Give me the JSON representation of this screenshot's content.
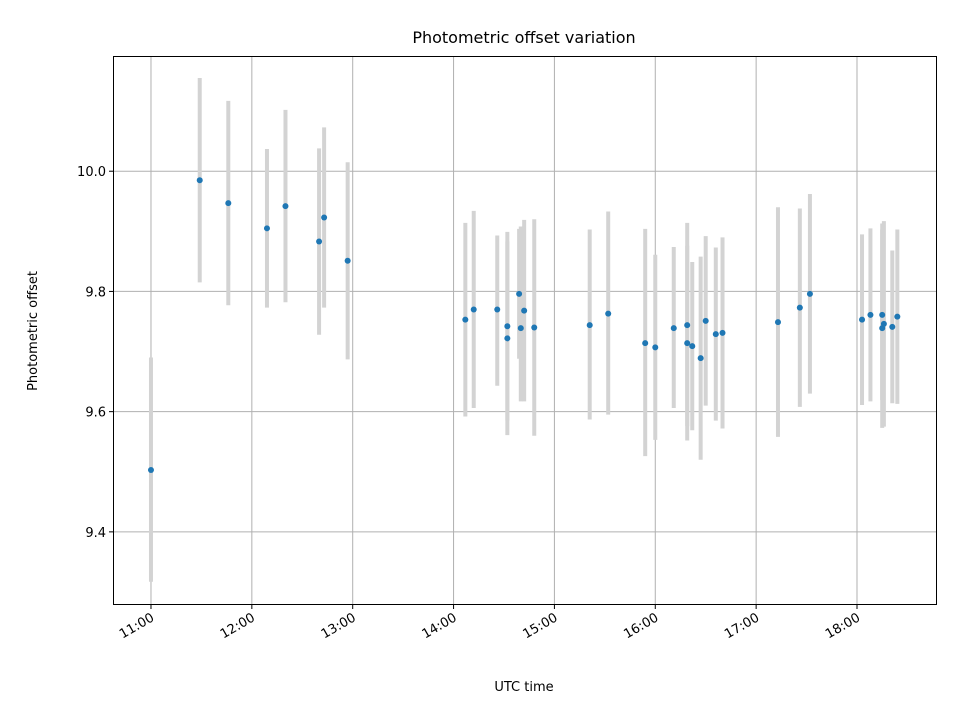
{
  "chart_data": {
    "type": "scatter",
    "title": "Photometric offset variation",
    "xlabel": "UTC time",
    "ylabel": "Photometric offset",
    "x_axis_type": "time",
    "xlim": [
      "10:38",
      "18:47"
    ],
    "ylim": [
      9.28,
      10.19
    ],
    "xticks": [
      "11:00",
      "12:00",
      "13:00",
      "14:00",
      "15:00",
      "16:00",
      "17:00",
      "18:00"
    ],
    "yticks": [
      9.4,
      9.6,
      9.8,
      10.0
    ],
    "ytick_labels": [
      "9.4",
      "9.6",
      "9.8",
      "10.0"
    ],
    "grid": true,
    "marker_color": "#1f77b4",
    "errorbar_color": "#d3d3d3",
    "series": [
      {
        "points": [
          {
            "t": "11:00",
            "y": 9.503,
            "ylo": 9.317,
            "yhi": 9.69
          },
          {
            "t": "11:29",
            "y": 9.985,
            "ylo": 9.815,
            "yhi": 10.155
          },
          {
            "t": "11:46",
            "y": 9.947,
            "ylo": 9.777,
            "yhi": 10.117
          },
          {
            "t": "12:09",
            "y": 9.905,
            "ylo": 9.773,
            "yhi": 10.037
          },
          {
            "t": "12:20",
            "y": 9.942,
            "ylo": 9.782,
            "yhi": 10.102
          },
          {
            "t": "12:40",
            "y": 9.883,
            "ylo": 9.728,
            "yhi": 10.038
          },
          {
            "t": "12:43",
            "y": 9.923,
            "ylo": 9.773,
            "yhi": 10.073
          },
          {
            "t": "12:57",
            "y": 9.851,
            "ylo": 9.687,
            "yhi": 10.015
          },
          {
            "t": "14:07",
            "y": 9.753,
            "ylo": 9.592,
            "yhi": 9.914
          },
          {
            "t": "14:12",
            "y": 9.77,
            "ylo": 9.606,
            "yhi": 9.934
          },
          {
            "t": "14:26",
            "y": 9.77,
            "ylo": 9.643,
            "yhi": 9.893
          },
          {
            "t": "14:32",
            "y": 9.742,
            "ylo": 9.585,
            "yhi": 9.899
          },
          {
            "t": "14:32",
            "y": 9.722,
            "ylo": 9.561,
            "yhi": 9.883
          },
          {
            "t": "14:39",
            "y": 9.796,
            "ylo": 9.688,
            "yhi": 9.904
          },
          {
            "t": "14:40",
            "y": 9.739,
            "ylo": 9.617,
            "yhi": 9.908
          },
          {
            "t": "14:42",
            "y": 9.768,
            "ylo": 9.617,
            "yhi": 9.919
          },
          {
            "t": "14:48",
            "y": 9.74,
            "ylo": 9.56,
            "yhi": 9.92
          },
          {
            "t": "15:21",
            "y": 9.744,
            "ylo": 9.587,
            "yhi": 9.903
          },
          {
            "t": "15:32",
            "y": 9.763,
            "ylo": 9.595,
            "yhi": 9.933
          },
          {
            "t": "15:54",
            "y": 9.714,
            "ylo": 9.526,
            "yhi": 9.904
          },
          {
            "t": "16:00",
            "y": 9.707,
            "ylo": 9.553,
            "yhi": 9.861
          },
          {
            "t": "16:11",
            "y": 9.739,
            "ylo": 9.606,
            "yhi": 9.874
          },
          {
            "t": "16:19",
            "y": 9.744,
            "ylo": 9.576,
            "yhi": 9.914
          },
          {
            "t": "16:19",
            "y": 9.714,
            "ylo": 9.552,
            "yhi": 9.876
          },
          {
            "t": "16:22",
            "y": 9.709,
            "ylo": 9.569,
            "yhi": 9.849
          },
          {
            "t": "16:27",
            "y": 9.689,
            "ylo": 9.52,
            "yhi": 9.858
          },
          {
            "t": "16:30",
            "y": 9.751,
            "ylo": 9.61,
            "yhi": 9.892
          },
          {
            "t": "16:36",
            "y": 9.729,
            "ylo": 9.585,
            "yhi": 9.873
          },
          {
            "t": "16:40",
            "y": 9.731,
            "ylo": 9.572,
            "yhi": 9.89
          },
          {
            "t": "17:13",
            "y": 9.749,
            "ylo": 9.558,
            "yhi": 9.94
          },
          {
            "t": "17:26",
            "y": 9.773,
            "ylo": 9.608,
            "yhi": 9.938
          },
          {
            "t": "17:32",
            "y": 9.796,
            "ylo": 9.63,
            "yhi": 9.962
          },
          {
            "t": "18:03",
            "y": 9.753,
            "ylo": 9.611,
            "yhi": 9.895
          },
          {
            "t": "18:08",
            "y": 9.761,
            "ylo": 9.617,
            "yhi": 9.905
          },
          {
            "t": "18:15",
            "y": 9.761,
            "ylo": 9.619,
            "yhi": 9.903
          },
          {
            "t": "18:15",
            "y": 9.739,
            "ylo": 9.573,
            "yhi": 9.913
          },
          {
            "t": "18:16",
            "y": 9.746,
            "ylo": 9.575,
            "yhi": 9.917
          },
          {
            "t": "18:21",
            "y": 9.741,
            "ylo": 9.614,
            "yhi": 9.868
          },
          {
            "t": "18:24",
            "y": 9.758,
            "ylo": 9.613,
            "yhi": 9.903
          }
        ]
      }
    ]
  }
}
